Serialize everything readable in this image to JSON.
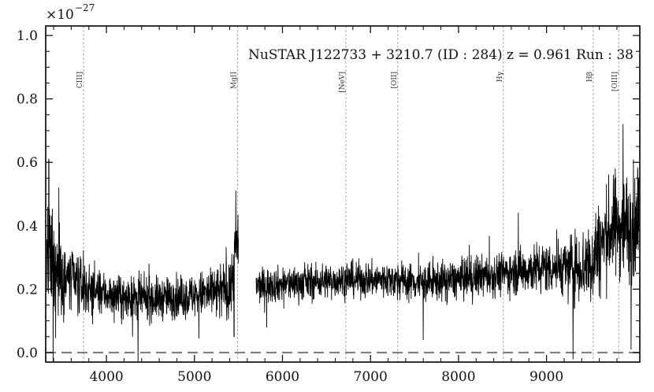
{
  "chart_data": {
    "type": "line",
    "title": "NuSTAR J122733 + 3210.7 (ID : 284)   z = 0.961   Run : 38",
    "multiplier_label": "×10",
    "multiplier_exponent": "−27",
    "xlabel": "",
    "ylabel": "",
    "xlim": [
      3310,
      10060
    ],
    "ylim": [
      -0.03,
      1.03
    ],
    "x_ticks": [
      4000,
      5000,
      6000,
      7000,
      8000,
      9000
    ],
    "x_tick_labels": [
      "4000",
      "5000",
      "6000",
      "7000",
      "8000",
      "9000"
    ],
    "y_ticks": [
      0.0,
      0.2,
      0.4,
      0.6,
      0.8,
      1.0
    ],
    "y_tick_labels": [
      "0.0",
      "0.2",
      "0.4",
      "0.6",
      "0.8",
      "1.0"
    ],
    "zero_line": 0.0,
    "gap": [
      5500,
      5700
    ],
    "emission_lines": [
      {
        "label": "CIII]",
        "x": 3740
      },
      {
        "label": "MgII",
        "x": 5490
      },
      {
        "label": "[NeV]",
        "x": 6720
      },
      {
        "label": "[OII]",
        "x": 7310
      },
      {
        "label": "Hγ",
        "x": 8510
      },
      {
        "label": "Hβ",
        "x": 9530
      },
      {
        "label": "[OIII]",
        "x": 9820
      }
    ],
    "continuum": [
      [
        3320,
        0.3
      ],
      [
        3500,
        0.24
      ],
      [
        3800,
        0.2
      ],
      [
        4200,
        0.17
      ],
      [
        4600,
        0.17
      ],
      [
        5000,
        0.18
      ],
      [
        5300,
        0.19
      ],
      [
        5420,
        0.22
      ],
      [
        5470,
        0.33
      ],
      [
        5500,
        0.34
      ],
      [
        5700,
        0.21
      ],
      [
        6200,
        0.22
      ],
      [
        6700,
        0.23
      ],
      [
        7200,
        0.23
      ],
      [
        7600,
        0.22
      ],
      [
        8000,
        0.23
      ],
      [
        8500,
        0.25
      ],
      [
        9000,
        0.27
      ],
      [
        9300,
        0.27
      ],
      [
        9500,
        0.28
      ],
      [
        9700,
        0.38
      ],
      [
        9850,
        0.4
      ],
      [
        10000,
        0.4
      ]
    ],
    "features": [
      {
        "x": 3345,
        "y": 0.61
      },
      {
        "x": 3395,
        "y": -0.04
      },
      {
        "x": 3460,
        "y": 0.52
      },
      {
        "x": 4360,
        "y": -0.03
      },
      {
        "x": 5470,
        "y": 0.51
      },
      {
        "x": 5450,
        "y": 0.05
      },
      {
        "x": 5820,
        "y": 0.08
      },
      {
        "x": 7600,
        "y": 0.04
      },
      {
        "x": 8680,
        "y": 0.44
      },
      {
        "x": 9300,
        "y": -0.02
      },
      {
        "x": 9560,
        "y": 0.44
      },
      {
        "x": 9780,
        "y": 0.58
      },
      {
        "x": 9870,
        "y": 0.72
      },
      {
        "x": 9960,
        "y": 0.01
      }
    ],
    "noise": [
      [
        3320,
        0.16
      ],
      [
        3600,
        0.1
      ],
      [
        3900,
        0.06
      ],
      [
        5000,
        0.06
      ],
      [
        5500,
        0.1
      ],
      [
        5700,
        0.05
      ],
      [
        7000,
        0.05
      ],
      [
        8500,
        0.06
      ],
      [
        9200,
        0.08
      ],
      [
        9500,
        0.12
      ],
      [
        10000,
        0.16
      ]
    ],
    "colors": {
      "spectrum": "#000000",
      "zero_line": "#777777",
      "line_markers": "#aaaaaa",
      "frame": "#000000"
    }
  }
}
